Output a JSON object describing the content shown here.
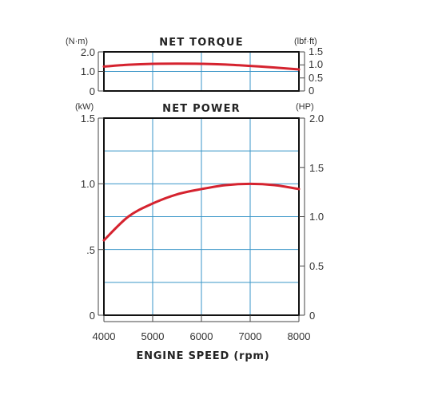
{
  "colors": {
    "curve": "#d5232f",
    "grid": "#3a96c8",
    "frame": "#111111"
  },
  "chart_data": [
    {
      "type": "line",
      "title": "NET TORQUE",
      "xlabel": "ENGINE SPEED (rpm)",
      "x": [
        4000,
        4500,
        5000,
        5500,
        6000,
        6500,
        7000,
        7500,
        8000
      ],
      "series": [
        {
          "values": [
            1.25,
            1.34,
            1.39,
            1.4,
            1.39,
            1.35,
            1.28,
            1.2,
            1.1
          ]
        }
      ],
      "xlim": [
        4000,
        8000
      ],
      "xticks": [
        "4000",
        "5000",
        "6000",
        "7000",
        "8000"
      ],
      "ylim": [
        0,
        2.0
      ],
      "ylabel": "(N·m)",
      "yticks": [
        "0",
        "1.0",
        "2.0"
      ],
      "y2lim": [
        0,
        1.5
      ],
      "y2label": "(lbf·ft)",
      "y2ticks": [
        "0",
        "0.5",
        "1.0",
        "1.5"
      ],
      "grid": true
    },
    {
      "type": "line",
      "title": "NET POWER",
      "xlabel": "ENGINE SPEED (rpm)",
      "x": [
        4000,
        4500,
        5000,
        5500,
        6000,
        6500,
        7000,
        7500,
        8000
      ],
      "series": [
        {
          "values": [
            0.57,
            0.75,
            0.85,
            0.92,
            0.96,
            0.99,
            1.0,
            0.99,
            0.96
          ]
        }
      ],
      "xlim": [
        4000,
        8000
      ],
      "xticks": [
        "4000",
        "5000",
        "6000",
        "7000",
        "8000"
      ],
      "ylim": [
        0,
        1.5
      ],
      "ylabel": "(kW)",
      "yticks": [
        "0",
        ".5",
        "1.0",
        "1.5"
      ],
      "y2lim": [
        0,
        2.0
      ],
      "y2label": "(HP)",
      "y2ticks": [
        "0",
        "0.5",
        "1.0",
        "1.5",
        "2.0"
      ],
      "grid": true
    }
  ]
}
